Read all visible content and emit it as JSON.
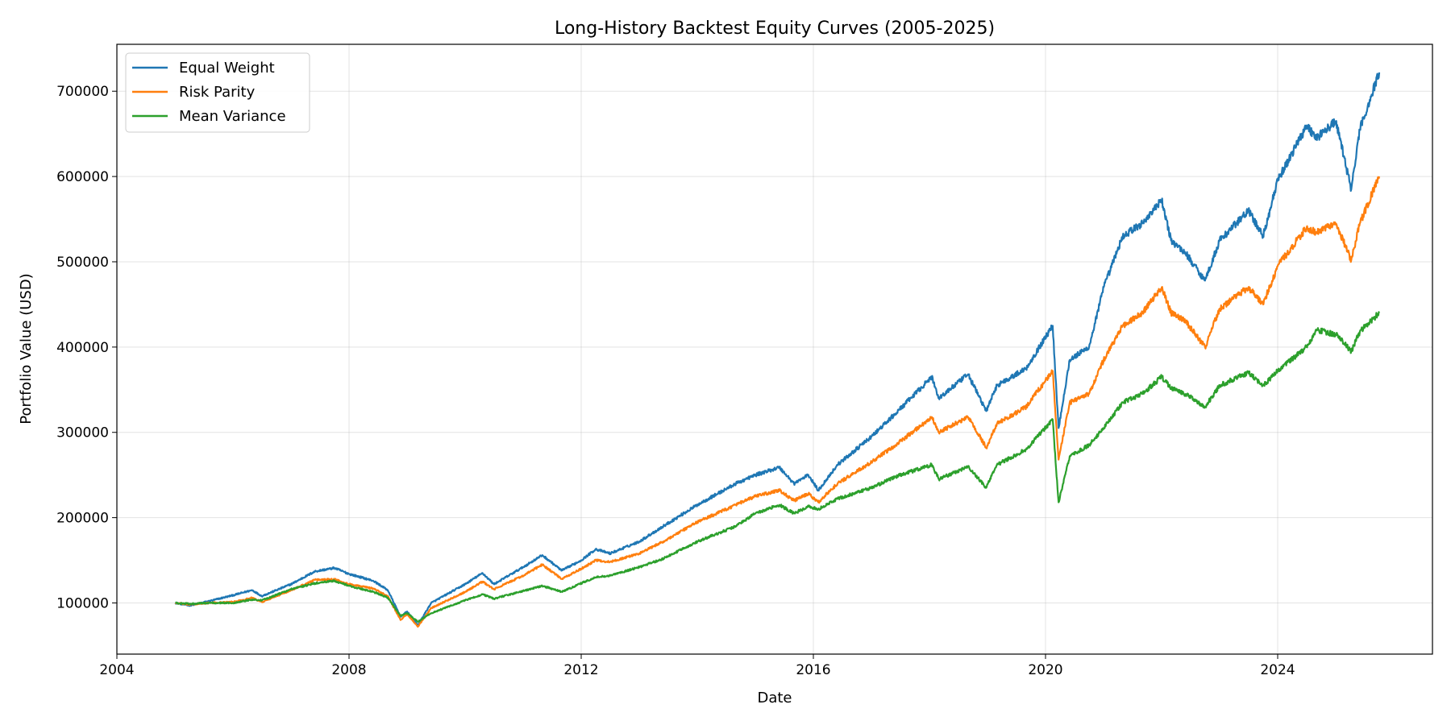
{
  "chart_data": {
    "type": "line",
    "title": "Long-History Backtest Equity Curves (2005-2025)",
    "xlabel": "Date",
    "ylabel": "Portfolio Value (USD)",
    "xlim": [
      "2004-01-01",
      "2026-09-01"
    ],
    "ylim": [
      40000,
      755000
    ],
    "x_ticks": [
      "2004",
      "2008",
      "2012",
      "2016",
      "2020",
      "2024"
    ],
    "y_ticks": [
      100000,
      200000,
      300000,
      400000,
      500000,
      600000,
      700000
    ],
    "grid": true,
    "legend_position": "top-left",
    "series": [
      {
        "name": "Equal Weight",
        "color": "#1f77b4",
        "points": [
          [
            "2005-01-03",
            100000
          ],
          [
            "2005-04-01",
            97000
          ],
          [
            "2005-08-01",
            102000
          ],
          [
            "2006-01-01",
            109000
          ],
          [
            "2006-05-01",
            115000
          ],
          [
            "2006-07-01",
            108000
          ],
          [
            "2007-01-01",
            122000
          ],
          [
            "2007-06-01",
            137000
          ],
          [
            "2007-10-01",
            141000
          ],
          [
            "2008-01-01",
            134000
          ],
          [
            "2008-06-01",
            126000
          ],
          [
            "2008-09-01",
            115000
          ],
          [
            "2008-11-20",
            84000
          ],
          [
            "2009-01-01",
            90000
          ],
          [
            "2009-03-09",
            74000
          ],
          [
            "2009-06-01",
            100000
          ],
          [
            "2010-01-01",
            122000
          ],
          [
            "2010-04-20",
            135000
          ],
          [
            "2010-07-01",
            122000
          ],
          [
            "2011-01-01",
            142000
          ],
          [
            "2011-05-01",
            156000
          ],
          [
            "2011-09-01",
            138000
          ],
          [
            "2012-01-01",
            150000
          ],
          [
            "2012-04-01",
            163000
          ],
          [
            "2012-07-01",
            158000
          ],
          [
            "2013-01-01",
            172000
          ],
          [
            "2013-06-01",
            190000
          ],
          [
            "2014-01-01",
            215000
          ],
          [
            "2014-09-01",
            240000
          ],
          [
            "2015-01-01",
            250000
          ],
          [
            "2015-06-01",
            259000
          ],
          [
            "2015-09-01",
            240000
          ],
          [
            "2015-12-01",
            250000
          ],
          [
            "2016-02-01",
            232000
          ],
          [
            "2016-06-01",
            262000
          ],
          [
            "2017-01-01",
            295000
          ],
          [
            "2017-06-01",
            322000
          ],
          [
            "2018-01-15",
            365000
          ],
          [
            "2018-03-01",
            340000
          ],
          [
            "2018-09-01",
            368000
          ],
          [
            "2018-12-24",
            325000
          ],
          [
            "2019-03-01",
            355000
          ],
          [
            "2019-09-01",
            375000
          ],
          [
            "2020-02-15",
            425000
          ],
          [
            "2020-03-23",
            305000
          ],
          [
            "2020-06-01",
            385000
          ],
          [
            "2020-10-01",
            400000
          ],
          [
            "2021-01-01",
            470000
          ],
          [
            "2021-05-01",
            530000
          ],
          [
            "2021-09-01",
            545000
          ],
          [
            "2022-01-01",
            572000
          ],
          [
            "2022-03-01",
            525000
          ],
          [
            "2022-06-01",
            510000
          ],
          [
            "2022-10-01",
            478000
          ],
          [
            "2023-01-01",
            525000
          ],
          [
            "2023-07-01",
            560000
          ],
          [
            "2023-10-01",
            530000
          ],
          [
            "2024-01-01",
            595000
          ],
          [
            "2024-07-01",
            660000
          ],
          [
            "2024-09-01",
            645000
          ],
          [
            "2025-01-01",
            665000
          ],
          [
            "2025-04-08",
            585000
          ],
          [
            "2025-06-01",
            655000
          ],
          [
            "2025-10-01",
            722000
          ]
        ]
      },
      {
        "name": "Risk Parity",
        "color": "#ff7f0e",
        "points": [
          [
            "2005-01-03",
            100000
          ],
          [
            "2005-04-01",
            98000
          ],
          [
            "2005-08-01",
            100000
          ],
          [
            "2006-01-01",
            101000
          ],
          [
            "2006-05-01",
            106000
          ],
          [
            "2006-07-01",
            101000
          ],
          [
            "2007-01-01",
            115000
          ],
          [
            "2007-06-01",
            127000
          ],
          [
            "2007-10-01",
            128000
          ],
          [
            "2008-01-01",
            122000
          ],
          [
            "2008-06-01",
            117000
          ],
          [
            "2008-09-01",
            108000
          ],
          [
            "2008-11-20",
            80000
          ],
          [
            "2009-01-01",
            87000
          ],
          [
            "2009-03-09",
            72000
          ],
          [
            "2009-06-01",
            94000
          ],
          [
            "2010-01-01",
            113000
          ],
          [
            "2010-04-20",
            125000
          ],
          [
            "2010-07-01",
            116000
          ],
          [
            "2011-01-01",
            132000
          ],
          [
            "2011-05-01",
            145000
          ],
          [
            "2011-09-01",
            128000
          ],
          [
            "2012-01-01",
            140000
          ],
          [
            "2012-04-01",
            150000
          ],
          [
            "2012-07-01",
            148000
          ],
          [
            "2013-01-01",
            158000
          ],
          [
            "2013-06-01",
            172000
          ],
          [
            "2014-01-01",
            195000
          ],
          [
            "2014-09-01",
            215000
          ],
          [
            "2015-01-01",
            225000
          ],
          [
            "2015-06-01",
            232000
          ],
          [
            "2015-09-01",
            220000
          ],
          [
            "2015-12-01",
            228000
          ],
          [
            "2016-02-01",
            218000
          ],
          [
            "2016-06-01",
            240000
          ],
          [
            "2017-01-01",
            265000
          ],
          [
            "2017-06-01",
            285000
          ],
          [
            "2018-01-15",
            318000
          ],
          [
            "2018-03-01",
            300000
          ],
          [
            "2018-09-01",
            318000
          ],
          [
            "2018-12-24",
            282000
          ],
          [
            "2019-03-01",
            310000
          ],
          [
            "2019-09-01",
            330000
          ],
          [
            "2020-02-15",
            372000
          ],
          [
            "2020-03-23",
            268000
          ],
          [
            "2020-06-01",
            335000
          ],
          [
            "2020-10-01",
            345000
          ],
          [
            "2021-01-01",
            385000
          ],
          [
            "2021-05-01",
            425000
          ],
          [
            "2021-09-01",
            440000
          ],
          [
            "2022-01-01",
            470000
          ],
          [
            "2022-03-01",
            440000
          ],
          [
            "2022-06-01",
            430000
          ],
          [
            "2022-10-01",
            400000
          ],
          [
            "2023-01-01",
            445000
          ],
          [
            "2023-07-01",
            470000
          ],
          [
            "2023-10-01",
            450000
          ],
          [
            "2024-01-01",
            495000
          ],
          [
            "2024-07-01",
            540000
          ],
          [
            "2024-09-01",
            535000
          ],
          [
            "2025-01-01",
            545000
          ],
          [
            "2025-04-08",
            502000
          ],
          [
            "2025-06-01",
            545000
          ],
          [
            "2025-10-01",
            600000
          ]
        ]
      },
      {
        "name": "Mean Variance",
        "color": "#2ca02c",
        "points": [
          [
            "2005-01-03",
            100000
          ],
          [
            "2005-04-01",
            99000
          ],
          [
            "2005-08-01",
            100000
          ],
          [
            "2006-01-01",
            100000
          ],
          [
            "2006-05-01",
            104000
          ],
          [
            "2006-07-01",
            103000
          ],
          [
            "2007-01-01",
            116000
          ],
          [
            "2007-06-01",
            123000
          ],
          [
            "2007-10-01",
            126000
          ],
          [
            "2008-01-01",
            120000
          ],
          [
            "2008-06-01",
            113000
          ],
          [
            "2008-09-01",
            106000
          ],
          [
            "2008-11-20",
            85000
          ],
          [
            "2009-01-01",
            88000
          ],
          [
            "2009-03-09",
            78000
          ],
          [
            "2009-06-01",
            88000
          ],
          [
            "2010-01-01",
            103000
          ],
          [
            "2010-04-20",
            110000
          ],
          [
            "2010-07-01",
            105000
          ],
          [
            "2011-01-01",
            114000
          ],
          [
            "2011-05-01",
            120000
          ],
          [
            "2011-09-01",
            113000
          ],
          [
            "2012-01-01",
            123000
          ],
          [
            "2012-04-01",
            130000
          ],
          [
            "2012-07-01",
            132000
          ],
          [
            "2013-01-01",
            142000
          ],
          [
            "2013-06-01",
            152000
          ],
          [
            "2014-01-01",
            172000
          ],
          [
            "2014-09-01",
            190000
          ],
          [
            "2015-01-01",
            205000
          ],
          [
            "2015-06-01",
            215000
          ],
          [
            "2015-09-01",
            205000
          ],
          [
            "2015-12-01",
            213000
          ],
          [
            "2016-02-01",
            210000
          ],
          [
            "2016-06-01",
            222000
          ],
          [
            "2017-01-01",
            235000
          ],
          [
            "2017-06-01",
            248000
          ],
          [
            "2018-01-15",
            262000
          ],
          [
            "2018-03-01",
            245000
          ],
          [
            "2018-09-01",
            260000
          ],
          [
            "2018-12-24",
            235000
          ],
          [
            "2019-03-01",
            262000
          ],
          [
            "2019-09-01",
            280000
          ],
          [
            "2020-02-15",
            315000
          ],
          [
            "2020-03-23",
            218000
          ],
          [
            "2020-06-01",
            272000
          ],
          [
            "2020-10-01",
            285000
          ],
          [
            "2021-01-01",
            305000
          ],
          [
            "2021-05-01",
            335000
          ],
          [
            "2021-09-01",
            345000
          ],
          [
            "2022-01-01",
            365000
          ],
          [
            "2022-03-01",
            352000
          ],
          [
            "2022-06-01",
            345000
          ],
          [
            "2022-10-01",
            330000
          ],
          [
            "2023-01-01",
            355000
          ],
          [
            "2023-07-01",
            370000
          ],
          [
            "2023-10-01",
            355000
          ],
          [
            "2024-01-01",
            372000
          ],
          [
            "2024-07-01",
            400000
          ],
          [
            "2024-09-01",
            420000
          ],
          [
            "2025-01-01",
            415000
          ],
          [
            "2025-04-08",
            395000
          ],
          [
            "2025-06-01",
            418000
          ],
          [
            "2025-10-01",
            440000
          ]
        ]
      }
    ]
  }
}
